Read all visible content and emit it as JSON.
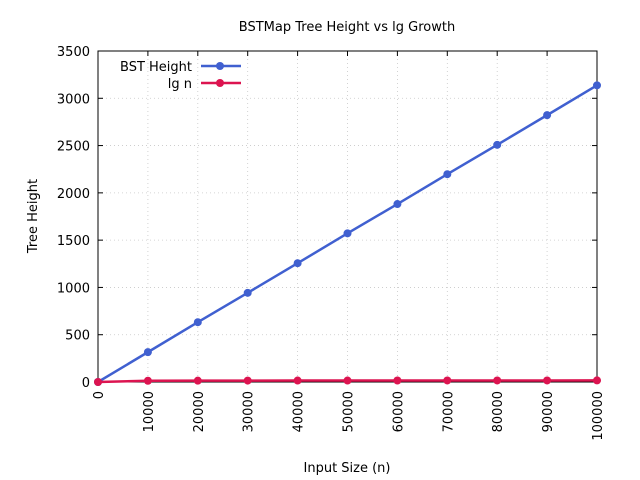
{
  "chart_data": {
    "type": "line",
    "title": "BSTMap Tree Height vs lg Growth",
    "xlabel": "Input Size (n)",
    "ylabel": "Tree Height",
    "xlim": [
      0,
      100000
    ],
    "ylim": [
      0,
      3500
    ],
    "x_ticks": [
      0,
      10000,
      20000,
      30000,
      40000,
      50000,
      60000,
      70000,
      80000,
      90000,
      100000
    ],
    "y_ticks": [
      0,
      500,
      1000,
      1500,
      2000,
      2500,
      3000,
      3500
    ],
    "grid": true,
    "legend_position": "top-left",
    "x": [
      0,
      10000,
      20000,
      30000,
      40000,
      50000,
      60000,
      70000,
      80000,
      90000,
      100000
    ],
    "series": [
      {
        "name": "BST Height",
        "color": "#4060d0",
        "values": [
          0,
          316,
          632,
          943,
          1256,
          1572,
          1882,
          2197,
          2508,
          2822,
          3137
        ]
      },
      {
        "name": "lg n",
        "color": "#dc1450",
        "values": [
          0,
          13.3,
          14.3,
          14.9,
          15.3,
          15.6,
          15.9,
          16.1,
          16.3,
          16.5,
          16.6
        ]
      }
    ]
  }
}
